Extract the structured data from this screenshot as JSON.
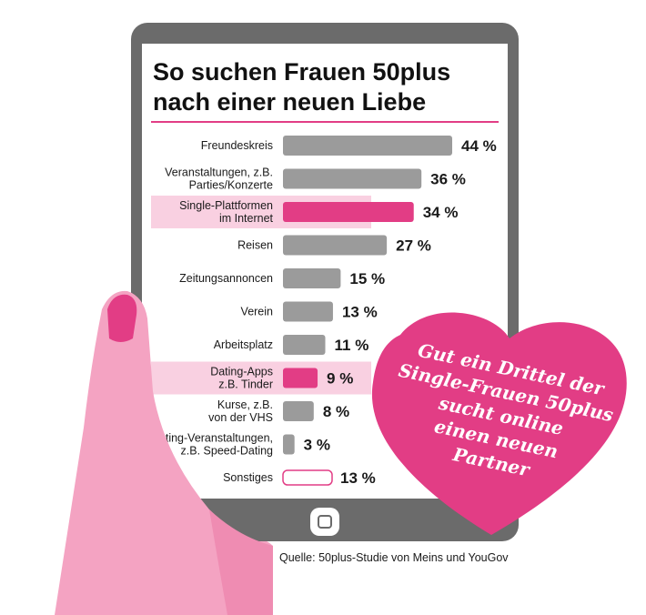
{
  "colors": {
    "tablet": "#6b6b6b",
    "screen": "#ffffff",
    "bar_default": "#9b9b9b",
    "bar_highlight": "#e23d85",
    "highlight_band": "#f9d0e1",
    "accent_line": "#e23d85",
    "heart": "#e23d85",
    "hand": "#f4a3c2",
    "hand_shade": "#ef8cb2",
    "nail": "#e23d85"
  },
  "chart_data": {
    "type": "bar",
    "orientation": "horizontal",
    "title_lines": [
      "So suchen Frauen 50plus",
      "nach einer neuen Liebe"
    ],
    "xlim": [
      0,
      50
    ],
    "unit": "%",
    "categories": [
      {
        "lines": [
          "Freundeskreis"
        ],
        "value": 44,
        "value_label": "44 %",
        "highlight": false,
        "style": "filled"
      },
      {
        "lines": [
          "Veranstaltungen, z.B.",
          "Parties/Konzerte"
        ],
        "value": 36,
        "value_label": "36 %",
        "highlight": false,
        "style": "filled"
      },
      {
        "lines": [
          "Single-Plattformen",
          "im Internet"
        ],
        "value": 34,
        "value_label": "34 %",
        "highlight": true,
        "style": "filled"
      },
      {
        "lines": [
          "Reisen"
        ],
        "value": 27,
        "value_label": "27 %",
        "highlight": false,
        "style": "filled"
      },
      {
        "lines": [
          "Zeitungsannoncen"
        ],
        "value": 15,
        "value_label": "15 %",
        "highlight": false,
        "style": "filled"
      },
      {
        "lines": [
          "Verein"
        ],
        "value": 13,
        "value_label": "13 %",
        "highlight": false,
        "style": "filled"
      },
      {
        "lines": [
          "Arbeitsplatz"
        ],
        "value": 11,
        "value_label": "11 %",
        "highlight": false,
        "style": "filled"
      },
      {
        "lines": [
          "Dating-Apps",
          "z.B. Tinder"
        ],
        "value": 9,
        "value_label": "9 %",
        "highlight": true,
        "style": "filled"
      },
      {
        "lines": [
          "Kurse, z.B.",
          "von der VHS"
        ],
        "value": 8,
        "value_label": "8 %",
        "highlight": false,
        "style": "filled"
      },
      {
        "lines": [
          "Dating-Veranstaltungen,",
          "z.B. Speed-Dating"
        ],
        "value": 3,
        "value_label": "3 %",
        "highlight": false,
        "style": "filled"
      },
      {
        "lines": [
          "Sonstiges"
        ],
        "value": 13,
        "value_label": "13 %",
        "highlight": false,
        "style": "outline"
      }
    ]
  },
  "heart_text_lines": [
    "Gut ein Drittel der",
    "Single-Frauen 50plus",
    "sucht online",
    "einen neuen",
    "Partner"
  ],
  "source": "Quelle: 50plus-Studie von Meins und YouGov",
  "icons": {
    "home_button": "home-button-icon",
    "heart": "heart-icon",
    "hand": "hand-icon"
  }
}
